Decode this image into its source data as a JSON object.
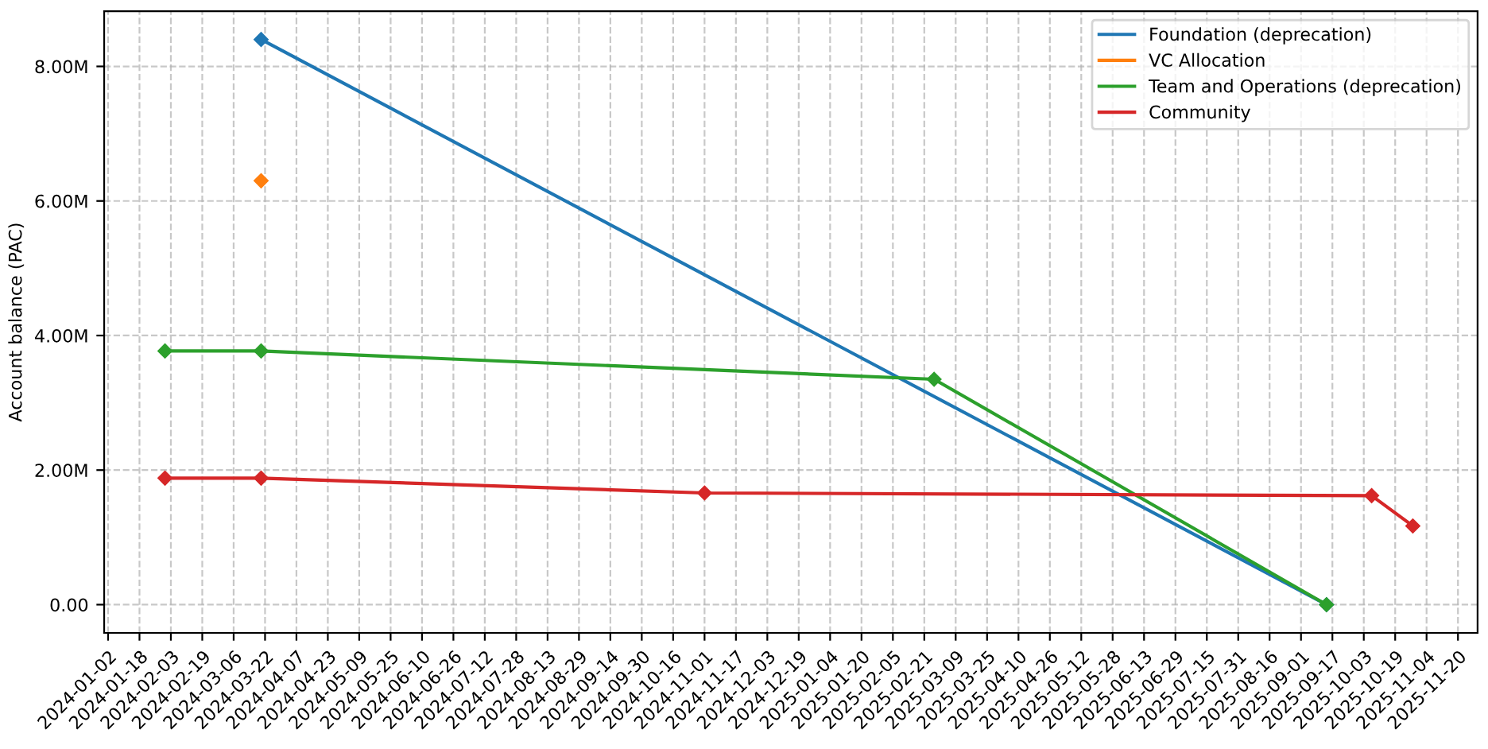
{
  "chart_data": {
    "type": "line",
    "ylabel": "Account balance (PAC)",
    "xlim": [
      "2023-12-31",
      "2025-11-30"
    ],
    "xticks": [
      "2024-01-02",
      "2024-01-18",
      "2024-02-03",
      "2024-02-19",
      "2024-03-06",
      "2024-03-22",
      "2024-04-07",
      "2024-04-23",
      "2024-05-09",
      "2024-05-25",
      "2024-06-10",
      "2024-06-26",
      "2024-07-12",
      "2024-07-28",
      "2024-08-13",
      "2024-08-29",
      "2024-09-14",
      "2024-09-30",
      "2024-10-16",
      "2024-11-01",
      "2024-11-17",
      "2024-12-03",
      "2024-12-19",
      "2025-01-04",
      "2025-01-20",
      "2025-02-05",
      "2025-02-21",
      "2025-03-09",
      "2025-03-25",
      "2025-04-10",
      "2025-04-26",
      "2025-05-12",
      "2025-05-28",
      "2025-06-13",
      "2025-06-29",
      "2025-07-15",
      "2025-07-31",
      "2025-08-16",
      "2025-09-01",
      "2025-09-17",
      "2025-10-03",
      "2025-10-19",
      "2025-11-04",
      "2025-11-20"
    ],
    "ylim": [
      -420000,
      8820000
    ],
    "yticks": [
      {
        "value": 0,
        "label": "0.00"
      },
      {
        "value": 2000000,
        "label": "2.00M"
      },
      {
        "value": 4000000,
        "label": "4.00M"
      },
      {
        "value": 6000000,
        "label": "6.00M"
      },
      {
        "value": 8000000,
        "label": "8.00M"
      }
    ],
    "grid": true,
    "legend": "top right",
    "marker": "diamond",
    "line_style": "solid",
    "series": [
      {
        "name": "Foundation (deprecation)",
        "color": "#1f77b4",
        "x": [
          "2024-03-20",
          "2025-09-14"
        ],
        "values": [
          8400000,
          0
        ]
      },
      {
        "name": "VC Allocation",
        "color": "#ff7f0e",
        "x": [
          "2024-03-20"
        ],
        "values": [
          6300000
        ]
      },
      {
        "name": "Team and Operations (deprecation)",
        "color": "#2ca02c",
        "x": [
          "2024-01-31",
          "2024-03-20",
          "2025-02-26",
          "2025-09-14"
        ],
        "values": [
          3770000,
          3770000,
          3350000,
          0
        ]
      },
      {
        "name": "Community",
        "color": "#d62728",
        "x": [
          "2024-01-31",
          "2024-03-20",
          "2024-11-01",
          "2025-10-07",
          "2025-10-28"
        ],
        "values": [
          1880000,
          1880000,
          1660000,
          1620000,
          1170000
        ]
      }
    ]
  }
}
